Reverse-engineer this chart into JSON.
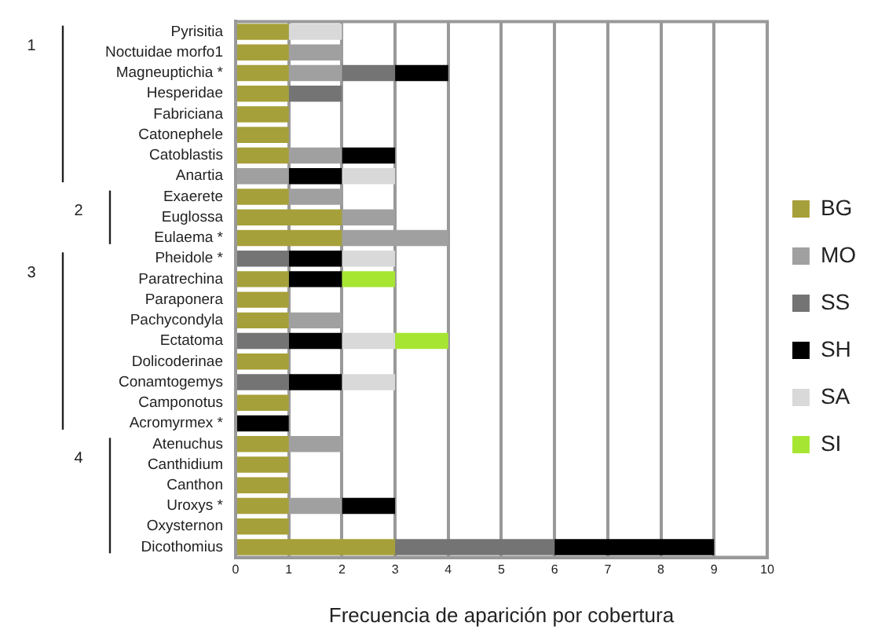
{
  "chart_data": {
    "type": "bar",
    "orientation": "horizontal",
    "stacked": true,
    "xlabel": "Frecuencia de aparición por cobertura",
    "categories": [
      "Pyrisitia",
      "Noctuidae morfo1",
      "Magneuptichia *",
      "Hesperidae",
      "Fabriciana",
      "Catonephele",
      "Catoblastis",
      "Anartia",
      "Exaerete",
      "Euglossa",
      "Eulaema *",
      "Pheidole *",
      "Paratrechina",
      "Paraponera",
      "Pachycondyla",
      "Ectatoma",
      "Dolicoderinae",
      "Conamtogemys",
      "Camponotus",
      "Acromyrmex *",
      "Atenuchus",
      "Canthidium",
      "Canthon",
      "Uroxys *",
      "Oxysternon",
      "Dicothomius"
    ],
    "series": [
      {
        "name": "BG",
        "color": "#a6a03a",
        "values": [
          1,
          1,
          1,
          1,
          1,
          1,
          1,
          null,
          1,
          2,
          2,
          null,
          1,
          1,
          1,
          null,
          1,
          null,
          1,
          null,
          1,
          1,
          1,
          1,
          1,
          3
        ]
      },
      {
        "name": "MO",
        "color": "#a0a0a0",
        "values": [
          null,
          1,
          1,
          null,
          null,
          null,
          1,
          1,
          1,
          1,
          2,
          null,
          null,
          null,
          1,
          null,
          null,
          null,
          null,
          null,
          1,
          null,
          null,
          1,
          null,
          null
        ]
      },
      {
        "name": "SS",
        "color": "#747474",
        "values": [
          null,
          null,
          1,
          1,
          null,
          null,
          null,
          null,
          null,
          null,
          null,
          1,
          null,
          null,
          null,
          1,
          null,
          1,
          null,
          null,
          null,
          null,
          null,
          null,
          null,
          3
        ]
      },
      {
        "name": "SH",
        "color": "#000000",
        "values": [
          null,
          null,
          1,
          null,
          null,
          null,
          1,
          1,
          null,
          null,
          null,
          1,
          1,
          null,
          null,
          1,
          null,
          1,
          null,
          1,
          null,
          null,
          null,
          1,
          null,
          3
        ]
      },
      {
        "name": "SA",
        "color": "#d9d9d9",
        "values": [
          1,
          null,
          null,
          null,
          null,
          null,
          null,
          1,
          null,
          null,
          null,
          1,
          null,
          null,
          null,
          1,
          null,
          1,
          null,
          null,
          null,
          null,
          null,
          null,
          null,
          null
        ]
      },
      {
        "name": "SI",
        "color": "#a6e632",
        "values": [
          null,
          null,
          null,
          null,
          null,
          null,
          null,
          null,
          null,
          null,
          null,
          null,
          1,
          null,
          null,
          1,
          null,
          null,
          null,
          null,
          null,
          null,
          null,
          null,
          null,
          null
        ]
      }
    ],
    "xlim": [
      0,
      10
    ],
    "xticks": [
      0,
      1,
      2,
      3,
      4,
      5,
      6,
      7,
      8,
      9,
      10
    ],
    "grid": "x",
    "legend": "right",
    "annotations": [
      "1",
      "2",
      "3",
      "4"
    ]
  }
}
